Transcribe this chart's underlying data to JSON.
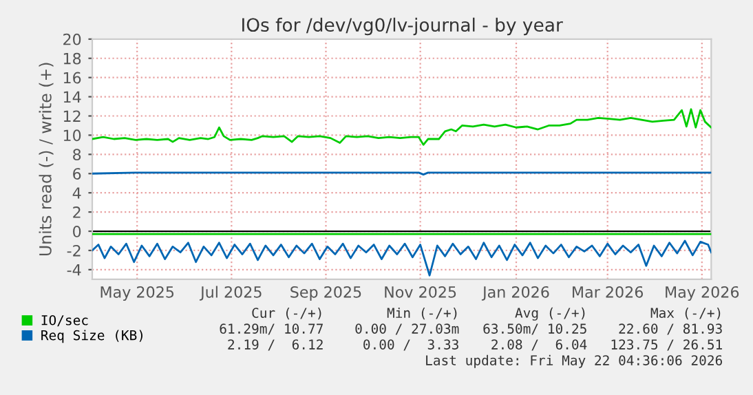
{
  "chart_data": {
    "type": "line",
    "title": "IOs for /dev/vg0/lv-journal - by year",
    "ylabel": "Units read (-) / write (+)",
    "xlim": [
      "2025-04-17",
      "2026-05-22"
    ],
    "xticks": [
      {
        "value": "2025-05-16",
        "label": "May 2025"
      },
      {
        "value": "2025-07-16",
        "label": "Jul 2025"
      },
      {
        "value": "2025-09-15",
        "label": "Sep 2025"
      },
      {
        "value": "2025-11-15",
        "label": "Nov 2025"
      },
      {
        "value": "2026-01-16",
        "label": "Jan 2026"
      },
      {
        "value": "2026-03-16",
        "label": "Mar 2026"
      },
      {
        "value": "2026-05-16",
        "label": "May 2026"
      }
    ],
    "ylim": [
      -5,
      20
    ],
    "yticks": [
      -4,
      -2,
      0,
      2,
      4,
      6,
      8,
      10,
      12,
      14,
      16,
      18,
      20
    ],
    "grid": true,
    "legend": "bottom left",
    "line_style": "solid",
    "ref_lines": [
      {
        "axis": "y",
        "value": 0,
        "color": "#000000"
      }
    ],
    "series": [
      {
        "name": "IO/sec",
        "color": "#00cc00",
        "x": [
          "2025-04-17",
          "2025-04-24",
          "2025-05-01",
          "2025-05-08",
          "2025-05-15",
          "2025-05-22",
          "2025-05-29",
          "2025-06-05",
          "2025-06-08",
          "2025-06-12",
          "2025-06-19",
          "2025-06-26",
          "2025-07-01",
          "2025-07-05",
          "2025-07-08",
          "2025-07-11",
          "2025-07-15",
          "2025-07-22",
          "2025-07-29",
          "2025-08-02",
          "2025-08-05",
          "2025-08-12",
          "2025-08-19",
          "2025-08-24",
          "2025-08-28",
          "2025-09-04",
          "2025-09-11",
          "2025-09-18",
          "2025-09-24",
          "2025-09-28",
          "2025-10-05",
          "2025-10-12",
          "2025-10-19",
          "2025-10-26",
          "2025-11-02",
          "2025-11-09",
          "2025-11-14",
          "2025-11-17",
          "2025-11-20",
          "2025-11-27",
          "2025-12-01",
          "2025-12-05",
          "2025-12-08",
          "2025-12-12",
          "2025-12-19",
          "2025-12-26",
          "2026-01-02",
          "2026-01-09",
          "2026-01-16",
          "2026-01-23",
          "2026-01-30",
          "2026-02-06",
          "2026-02-13",
          "2026-02-20",
          "2026-02-24",
          "2026-03-03",
          "2026-03-10",
          "2026-03-17",
          "2026-03-24",
          "2026-03-31",
          "2026-04-07",
          "2026-04-14",
          "2026-04-21",
          "2026-04-28",
          "2026-05-03",
          "2026-05-06",
          "2026-05-09",
          "2026-05-12",
          "2026-05-15",
          "2026-05-18",
          "2026-05-22"
        ],
        "values": [
          9.6,
          9.8,
          9.6,
          9.7,
          9.5,
          9.6,
          9.5,
          9.6,
          9.3,
          9.7,
          9.5,
          9.7,
          9.6,
          9.8,
          10.8,
          9.9,
          9.5,
          9.6,
          9.5,
          9.7,
          9.9,
          9.8,
          9.9,
          9.3,
          9.9,
          9.8,
          9.9,
          9.7,
          9.2,
          9.9,
          9.8,
          9.9,
          9.7,
          9.8,
          9.7,
          9.8,
          9.8,
          9.0,
          9.6,
          9.6,
          10.4,
          10.6,
          10.4,
          11.0,
          10.9,
          11.1,
          10.9,
          11.1,
          10.8,
          10.9,
          10.6,
          11.0,
          11.0,
          11.2,
          11.6,
          11.6,
          11.8,
          11.7,
          11.6,
          11.8,
          11.6,
          11.4,
          11.5,
          11.6,
          12.6,
          10.9,
          12.7,
          10.8,
          12.6,
          11.4,
          10.8
        ]
      },
      {
        "color": "#00cc00",
        "x": [
          "2025-04-17",
          "2026-05-22"
        ],
        "values": [
          -0.3,
          -0.3
        ]
      },
      {
        "name": "Req Size (KB)",
        "color": "#0066b3",
        "x": [
          "2025-04-17",
          "2025-05-15",
          "2025-08-01",
          "2025-11-14",
          "2025-11-17",
          "2025-11-20",
          "2026-03-01",
          "2026-05-22"
        ],
        "values": [
          6.0,
          6.1,
          6.1,
          6.1,
          5.9,
          6.1,
          6.1,
          6.1
        ]
      },
      {
        "color": "#0066b3",
        "x": [
          "2025-04-17",
          "2025-04-21",
          "2025-04-25",
          "2025-04-29",
          "2025-05-04",
          "2025-05-09",
          "2025-05-14",
          "2025-05-19",
          "2025-05-24",
          "2025-05-29",
          "2025-06-03",
          "2025-06-08",
          "2025-06-13",
          "2025-06-18",
          "2025-06-23",
          "2025-06-28",
          "2025-07-03",
          "2025-07-08",
          "2025-07-13",
          "2025-07-18",
          "2025-07-23",
          "2025-07-28",
          "2025-08-02",
          "2025-08-07",
          "2025-08-12",
          "2025-08-17",
          "2025-08-22",
          "2025-08-27",
          "2025-09-01",
          "2025-09-06",
          "2025-09-11",
          "2025-09-16",
          "2025-09-21",
          "2025-09-26",
          "2025-10-01",
          "2025-10-06",
          "2025-10-11",
          "2025-10-16",
          "2025-10-21",
          "2025-10-26",
          "2025-10-31",
          "2025-11-05",
          "2025-11-10",
          "2025-11-15",
          "2025-11-21",
          "2025-11-26",
          "2025-12-01",
          "2025-12-06",
          "2025-12-11",
          "2025-12-16",
          "2025-12-21",
          "2025-12-26",
          "2025-12-31",
          "2026-01-05",
          "2026-01-10",
          "2026-01-15",
          "2026-01-20",
          "2026-01-25",
          "2026-01-30",
          "2026-02-04",
          "2026-02-09",
          "2026-02-14",
          "2026-02-19",
          "2026-02-24",
          "2026-03-01",
          "2026-03-06",
          "2026-03-11",
          "2026-03-16",
          "2026-03-21",
          "2026-03-26",
          "2026-03-31",
          "2026-04-05",
          "2026-04-10",
          "2026-04-15",
          "2026-04-20",
          "2026-04-25",
          "2026-04-30",
          "2026-05-05",
          "2026-05-10",
          "2026-05-15",
          "2026-05-20",
          "2026-05-22"
        ],
        "values": [
          -2.0,
          -1.4,
          -2.8,
          -1.6,
          -2.4,
          -1.3,
          -3.2,
          -1.5,
          -2.6,
          -1.3,
          -2.9,
          -1.6,
          -2.2,
          -1.2,
          -3.2,
          -1.6,
          -2.5,
          -1.2,
          -2.8,
          -1.4,
          -2.4,
          -1.3,
          -3.0,
          -1.5,
          -2.5,
          -1.4,
          -2.7,
          -1.5,
          -2.3,
          -1.3,
          -2.9,
          -1.6,
          -2.4,
          -1.3,
          -2.8,
          -1.5,
          -2.2,
          -1.4,
          -2.9,
          -1.5,
          -2.4,
          -1.3,
          -2.7,
          -1.4,
          -4.6,
          -1.5,
          -2.6,
          -1.3,
          -2.4,
          -1.6,
          -2.9,
          -1.2,
          -2.7,
          -1.5,
          -3.0,
          -1.4,
          -2.5,
          -1.2,
          -2.8,
          -1.5,
          -2.3,
          -1.4,
          -2.7,
          -1.6,
          -2.1,
          -1.5,
          -2.6,
          -1.3,
          -2.4,
          -1.5,
          -2.2,
          -1.4,
          -3.6,
          -1.5,
          -2.6,
          -1.2,
          -2.3,
          -1.0,
          -2.5,
          -1.1,
          -1.4,
          -2.2
        ]
      }
    ],
    "annotations": [
      "Cur (-/+)",
      "Min (-/+)",
      "Avg (-/+)",
      "Max (-/+)",
      "61.29m/ 10.77",
      "0.00 / 27.03m",
      "63.50m/ 10.25",
      "22.60 / 81.93",
      "2.19 /  6.12",
      "0.00 /  3.33",
      "2.08 /  6.04",
      "123.75 / 26.51",
      "Last update: Fri May 22 04:36:06 2026"
    ]
  }
}
